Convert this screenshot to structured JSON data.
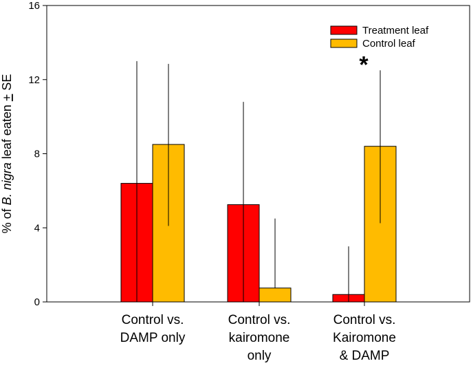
{
  "chart_data": {
    "type": "bar",
    "title": "",
    "xlabel": "",
    "ylabel": {
      "prefix": "% of ",
      "italic": "B. nigra",
      "mid": " leaf eaten ",
      "pm": "+",
      "suffix": " SE"
    },
    "ylim": [
      0,
      16
    ],
    "yticks": [
      "0",
      "4",
      "8",
      "12",
      "16"
    ],
    "categories": [
      [
        "Control vs.",
        "DAMP only"
      ],
      [
        "Control vs.",
        "kairomone",
        "only"
      ],
      [
        "Control vs.",
        "Kairomone",
        "& DAMP"
      ]
    ],
    "series": [
      {
        "name": "Treatment leaf",
        "color": "#ff0000",
        "values": [
          6.4,
          5.25,
          0.4
        ],
        "error_upper": [
          13.0,
          10.8,
          3.0
        ]
      },
      {
        "name": "Control leaf",
        "color": "#ffbb00",
        "values": [
          8.5,
          0.75,
          8.4
        ],
        "error_upper": [
          12.85,
          4.5,
          12.5
        ],
        "error_lower": [
          4.1,
          0.75,
          4.25
        ]
      }
    ],
    "annotations": [
      {
        "text": "*",
        "category_index": 2,
        "series_index": 1,
        "y": 13.2
      }
    ],
    "legend": {
      "position": "top-right"
    },
    "grid": false
  }
}
